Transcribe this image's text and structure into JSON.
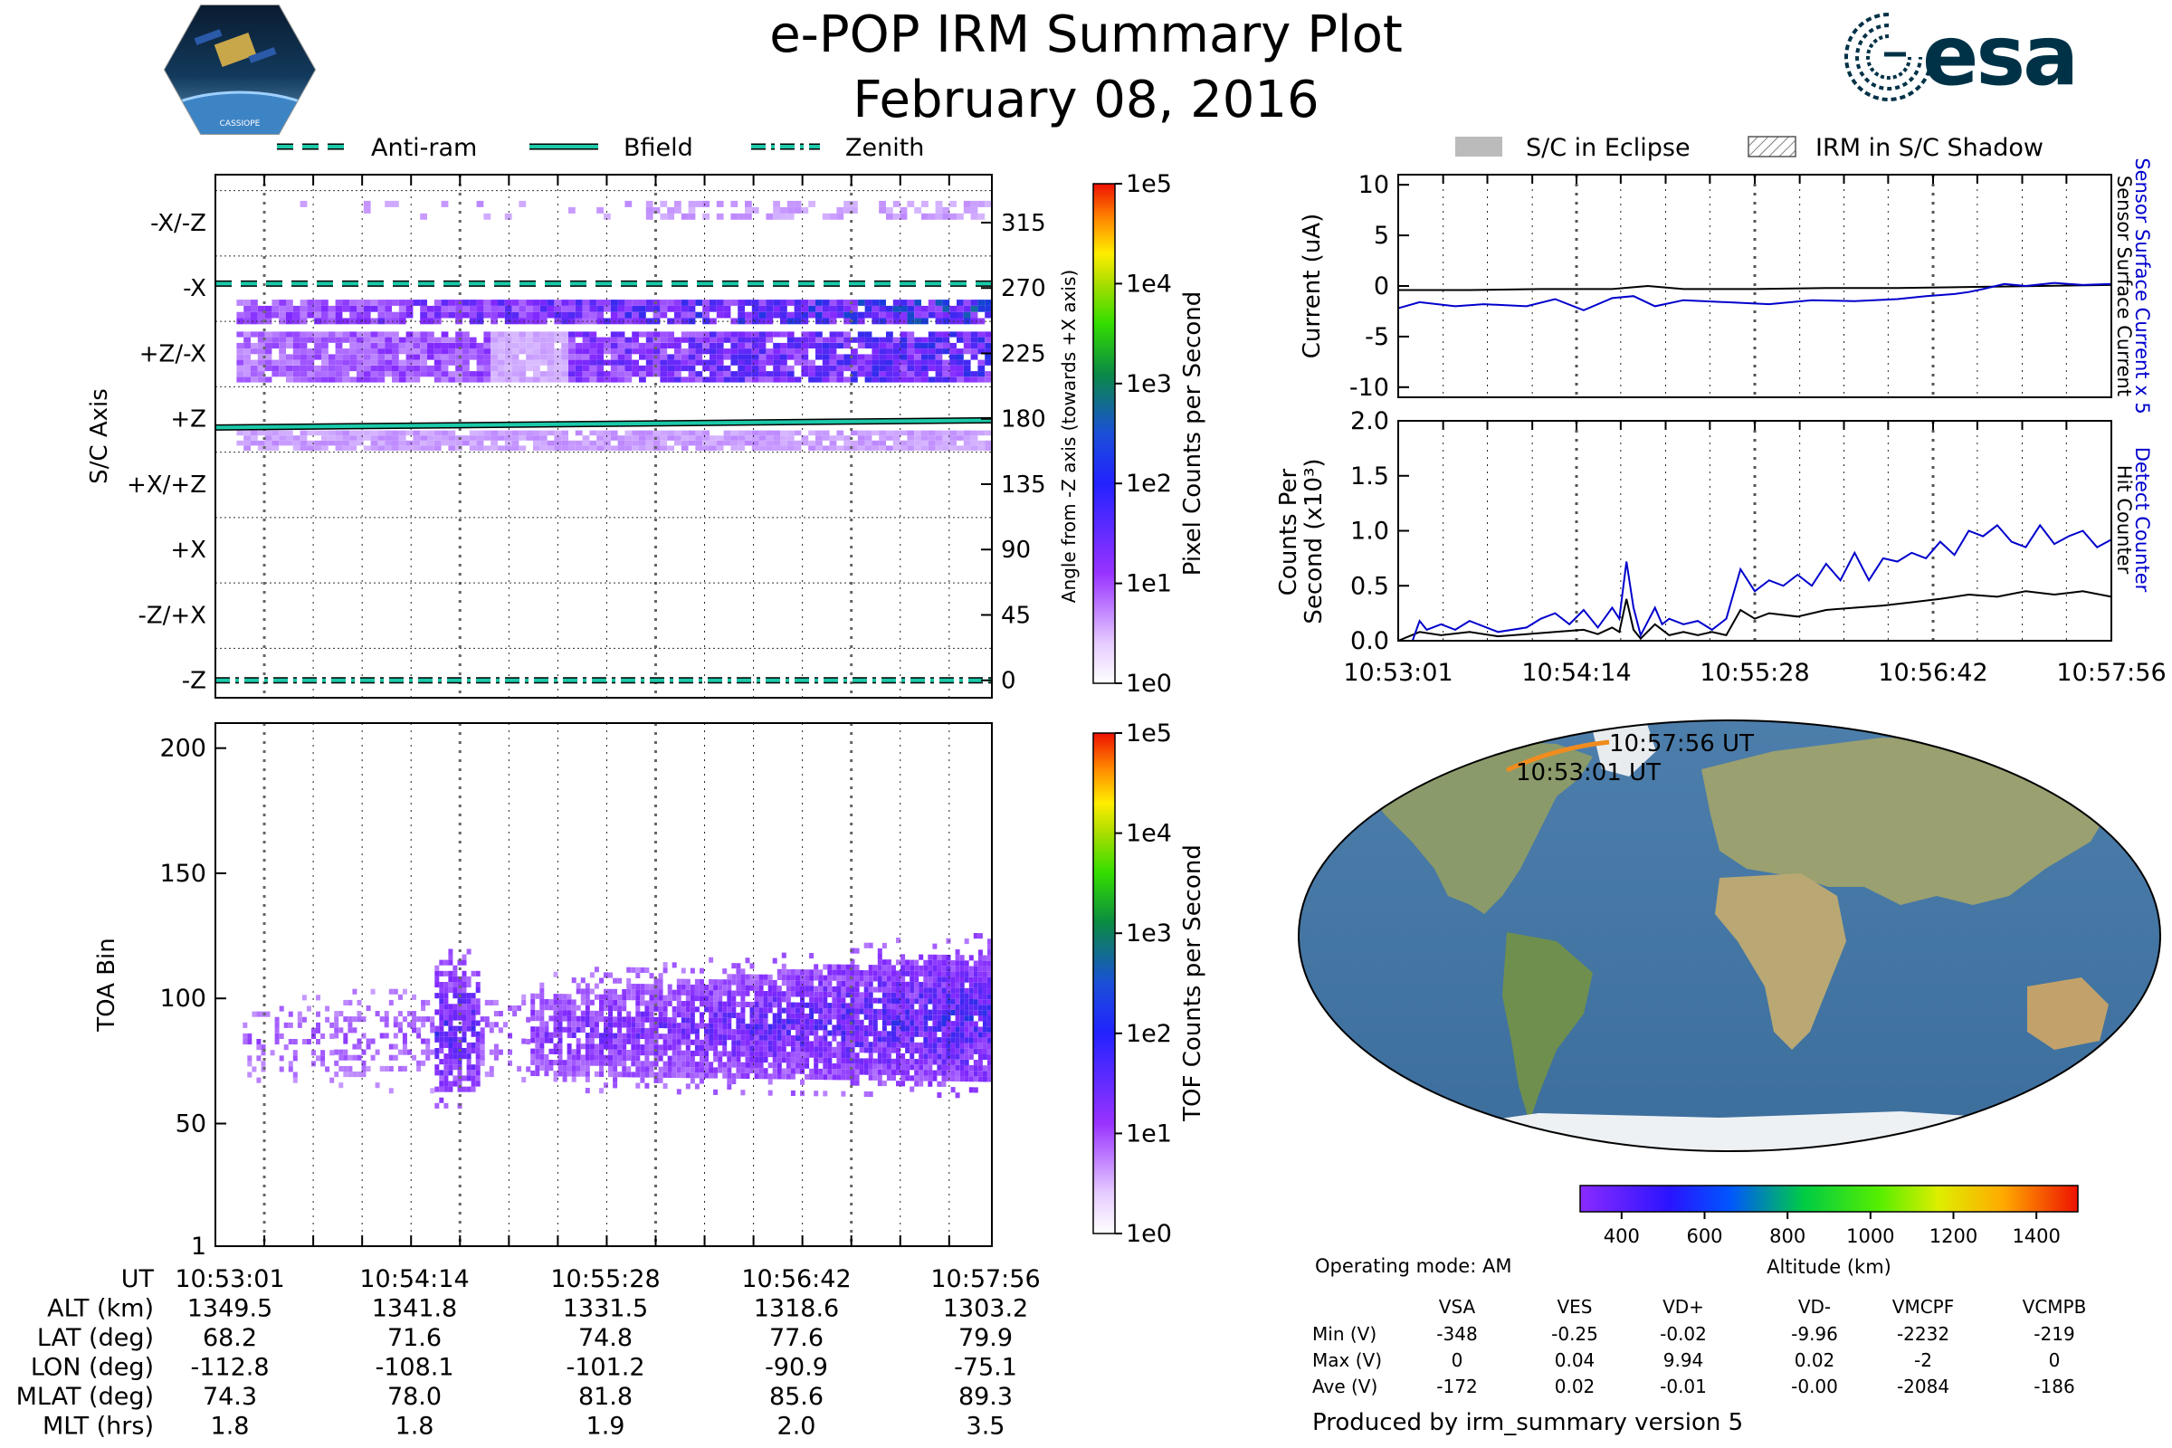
{
  "header": {
    "title": "e-POP IRM Summary Plot",
    "date": "February 08, 2016",
    "esa_logo": "esa",
    "mission_badge": "CASSIOPE"
  },
  "colors": {
    "teal": "#1bc9a9",
    "blue_line": "#0000cc",
    "black_line": "#000000",
    "orbit": "#f08c1e"
  },
  "chart_data": [
    {
      "id": "pixel_counts",
      "type": "heatmap",
      "legend": [
        {
          "label": "Anti-ram",
          "style": "dashed"
        },
        {
          "label": "Bfield",
          "style": "solid"
        },
        {
          "label": "Zenith",
          "style": "dashdot"
        }
      ],
      "ylabel_left": "S/C Axis",
      "ylabel_right": "Angle from -Z axis (towards +X axis)",
      "ytick_labels_left": [
        "-X/-Z",
        "-X",
        "+Z/-X",
        "+Z",
        "+X/+Z",
        "+X",
        "-Z/+X",
        "-Z"
      ],
      "ytick_values_right": [
        315,
        270,
        225,
        180,
        135,
        90,
        45,
        0
      ],
      "ylim": [
        -12,
        348
      ],
      "x_range": [
        "10:53:01",
        "10:57:56"
      ],
      "colorbar": {
        "label": "Pixel Counts per Second",
        "ticks": [
          "1e5",
          "1e4",
          "1e3",
          "1e2",
          "1e1",
          "1e0"
        ]
      },
      "lines": {
        "anti_ram_deg": 273,
        "zenith_deg": 0,
        "bfield_deg": [
          174,
          179
        ]
      },
      "bands": [
        {
          "ymin": 317,
          "ymax": 330,
          "x_from": 0.05,
          "intensity": 0.15
        },
        {
          "ymin": 245,
          "ymax": 262,
          "x_from": 0.02,
          "intensity": 0.55
        },
        {
          "ymin": 205,
          "ymax": 240,
          "x_from": 0.02,
          "intensity": 0.45
        },
        {
          "ymin": 158,
          "ymax": 172,
          "x_from": 0.02,
          "intensity": 0.15
        }
      ]
    },
    {
      "id": "tof_counts",
      "type": "heatmap",
      "ylabel": "TOA Bin",
      "yticks": [
        1,
        50,
        100,
        150,
        200
      ],
      "ylim": [
        1,
        210
      ],
      "x_range": [
        "10:53:01",
        "10:57:56"
      ],
      "colorbar": {
        "label": "TOF Counts per Second",
        "ticks": [
          "1e5",
          "1e4",
          "1e3",
          "1e2",
          "1e1",
          "1e0"
        ]
      }
    },
    {
      "id": "current",
      "type": "line",
      "ylabel": "Current (uA)",
      "yticks": [
        10,
        5,
        0,
        -5,
        -10
      ],
      "ylim": [
        -11,
        11
      ],
      "right_labels": [
        {
          "text": "Sensor Surface Current x 5",
          "color": "#0000cc"
        },
        {
          "text": "Sensor Surface Current",
          "color": "#000000"
        }
      ],
      "legend": [
        {
          "label": "S/C in Eclipse",
          "style": "fill"
        },
        {
          "label": "IRM in S/C Shadow",
          "style": "hatch"
        }
      ],
      "series": [
        {
          "name": "Sensor Surface Current x 5",
          "color": "#0000cc",
          "x": [
            0,
            0.03,
            0.08,
            0.12,
            0.18,
            0.22,
            0.26,
            0.3,
            0.33,
            0.36,
            0.4,
            0.46,
            0.52,
            0.58,
            0.64,
            0.7,
            0.74,
            0.78,
            0.8,
            0.82,
            0.85,
            0.88,
            0.92,
            0.96,
            1.0
          ],
          "y": [
            -2.2,
            -1.6,
            -2.0,
            -1.8,
            -2.0,
            -1.3,
            -2.4,
            -1.2,
            -1.0,
            -2.0,
            -1.4,
            -1.6,
            -1.8,
            -1.4,
            -1.5,
            -1.3,
            -1.0,
            -0.8,
            -0.6,
            -0.3,
            0.2,
            0.0,
            0.3,
            0.1,
            0.2
          ]
        },
        {
          "name": "Sensor Surface Current",
          "color": "#000000",
          "x": [
            0,
            0.1,
            0.2,
            0.3,
            0.35,
            0.4,
            0.5,
            0.6,
            0.7,
            0.8,
            0.9,
            1.0
          ],
          "y": [
            -0.4,
            -0.4,
            -0.3,
            -0.3,
            0.0,
            -0.3,
            -0.3,
            -0.2,
            -0.2,
            -0.1,
            0.0,
            0.1
          ]
        }
      ]
    },
    {
      "id": "counts",
      "type": "line",
      "ylabel": "Counts Per Second (x10³)",
      "yticks": [
        2.0,
        1.5,
        1.0,
        0.5,
        0.0
      ],
      "ylim": [
        0,
        2.0
      ],
      "xtick_labels": [
        "10:53:01",
        "10:54:14",
        "10:55:28",
        "10:56:42",
        "10:57:56"
      ],
      "right_labels": [
        {
          "text": "Detect Counter",
          "color": "#0000cc"
        },
        {
          "text": "Hit Counter",
          "color": "#000000"
        }
      ],
      "series": [
        {
          "name": "Detect Counter",
          "color": "#0000cc",
          "x": [
            0,
            0.02,
            0.03,
            0.04,
            0.06,
            0.08,
            0.1,
            0.14,
            0.18,
            0.2,
            0.22,
            0.24,
            0.26,
            0.28,
            0.3,
            0.31,
            0.32,
            0.33,
            0.34,
            0.36,
            0.37,
            0.38,
            0.4,
            0.42,
            0.44,
            0.46,
            0.48,
            0.5,
            0.52,
            0.54,
            0.56,
            0.58,
            0.6,
            0.62,
            0.64,
            0.66,
            0.68,
            0.7,
            0.72,
            0.74,
            0.76,
            0.78,
            0.8,
            0.82,
            0.84,
            0.86,
            0.88,
            0.9,
            0.92,
            0.94,
            0.96,
            0.98,
            1.0
          ],
          "y": [
            0.0,
            0.0,
            0.18,
            0.1,
            0.15,
            0.1,
            0.18,
            0.08,
            0.12,
            0.2,
            0.25,
            0.15,
            0.28,
            0.12,
            0.3,
            0.2,
            0.72,
            0.3,
            0.05,
            0.3,
            0.15,
            0.2,
            0.15,
            0.18,
            0.1,
            0.2,
            0.65,
            0.45,
            0.55,
            0.5,
            0.6,
            0.5,
            0.7,
            0.55,
            0.8,
            0.55,
            0.75,
            0.72,
            0.8,
            0.75,
            0.9,
            0.78,
            1.0,
            0.95,
            1.05,
            0.9,
            0.85,
            1.05,
            0.88,
            0.95,
            1.0,
            0.85,
            0.92
          ]
        },
        {
          "name": "Hit Counter",
          "color": "#000000",
          "x": [
            0,
            0.03,
            0.06,
            0.1,
            0.14,
            0.18,
            0.22,
            0.26,
            0.28,
            0.3,
            0.31,
            0.32,
            0.33,
            0.34,
            0.36,
            0.38,
            0.4,
            0.42,
            0.44,
            0.46,
            0.48,
            0.5,
            0.52,
            0.56,
            0.6,
            0.64,
            0.68,
            0.72,
            0.76,
            0.8,
            0.84,
            0.88,
            0.92,
            0.96,
            1.0
          ],
          "y": [
            0.0,
            0.08,
            0.05,
            0.08,
            0.04,
            0.06,
            0.08,
            0.1,
            0.06,
            0.12,
            0.08,
            0.38,
            0.1,
            0.02,
            0.15,
            0.05,
            0.08,
            0.05,
            0.08,
            0.05,
            0.28,
            0.2,
            0.25,
            0.22,
            0.28,
            0.3,
            0.32,
            0.35,
            0.38,
            0.42,
            0.4,
            0.45,
            0.42,
            0.45,
            0.4
          ]
        }
      ]
    },
    {
      "id": "orbit_map",
      "type": "scatter",
      "labels": {
        "start": "10:53:01 UT",
        "end": "10:57:56 UT"
      },
      "colorbar": {
        "label": "Altitude (km)",
        "ticks": [
          400,
          600,
          800,
          1000,
          1200,
          1400
        ],
        "range": [
          300,
          1500
        ]
      }
    }
  ],
  "time_table": {
    "row_labels": [
      "UT",
      "ALT (km)",
      "LAT (deg)",
      "LON (deg)",
      "MLAT (deg)",
      "MLT (hrs)"
    ],
    "columns": [
      [
        "10:53:01",
        "1349.5",
        "68.2",
        "-112.8",
        "74.3",
        "1.8"
      ],
      [
        "10:54:14",
        "1341.8",
        "71.6",
        "-108.1",
        "78.0",
        "1.8"
      ],
      [
        "10:55:28",
        "1331.5",
        "74.8",
        "-101.2",
        "81.8",
        "1.9"
      ],
      [
        "10:56:42",
        "1318.6",
        "77.6",
        "-90.9",
        "85.6",
        "2.0"
      ],
      [
        "10:57:56",
        "1303.2",
        "79.9",
        "-75.1",
        "89.3",
        "3.5"
      ]
    ]
  },
  "voltage_table": {
    "operating_mode": "Operating mode: AM",
    "headers": [
      "VSA",
      "VES",
      "VD+",
      "VD-",
      "VMCPF",
      "VCMPB"
    ],
    "rows": [
      {
        "label": "Min (V)",
        "values": [
          "-348",
          "-0.25",
          "-0.02",
          "-9.96",
          "-2232",
          "-219"
        ]
      },
      {
        "label": "Max (V)",
        "values": [
          "0",
          "0.04",
          "9.94",
          "0.02",
          "-2",
          "0"
        ]
      },
      {
        "label": "Ave (V)",
        "values": [
          "-172",
          "0.02",
          "-0.01",
          "-0.00",
          "-2084",
          "-186"
        ]
      }
    ],
    "footer": "Produced by irm_summary version 5"
  }
}
